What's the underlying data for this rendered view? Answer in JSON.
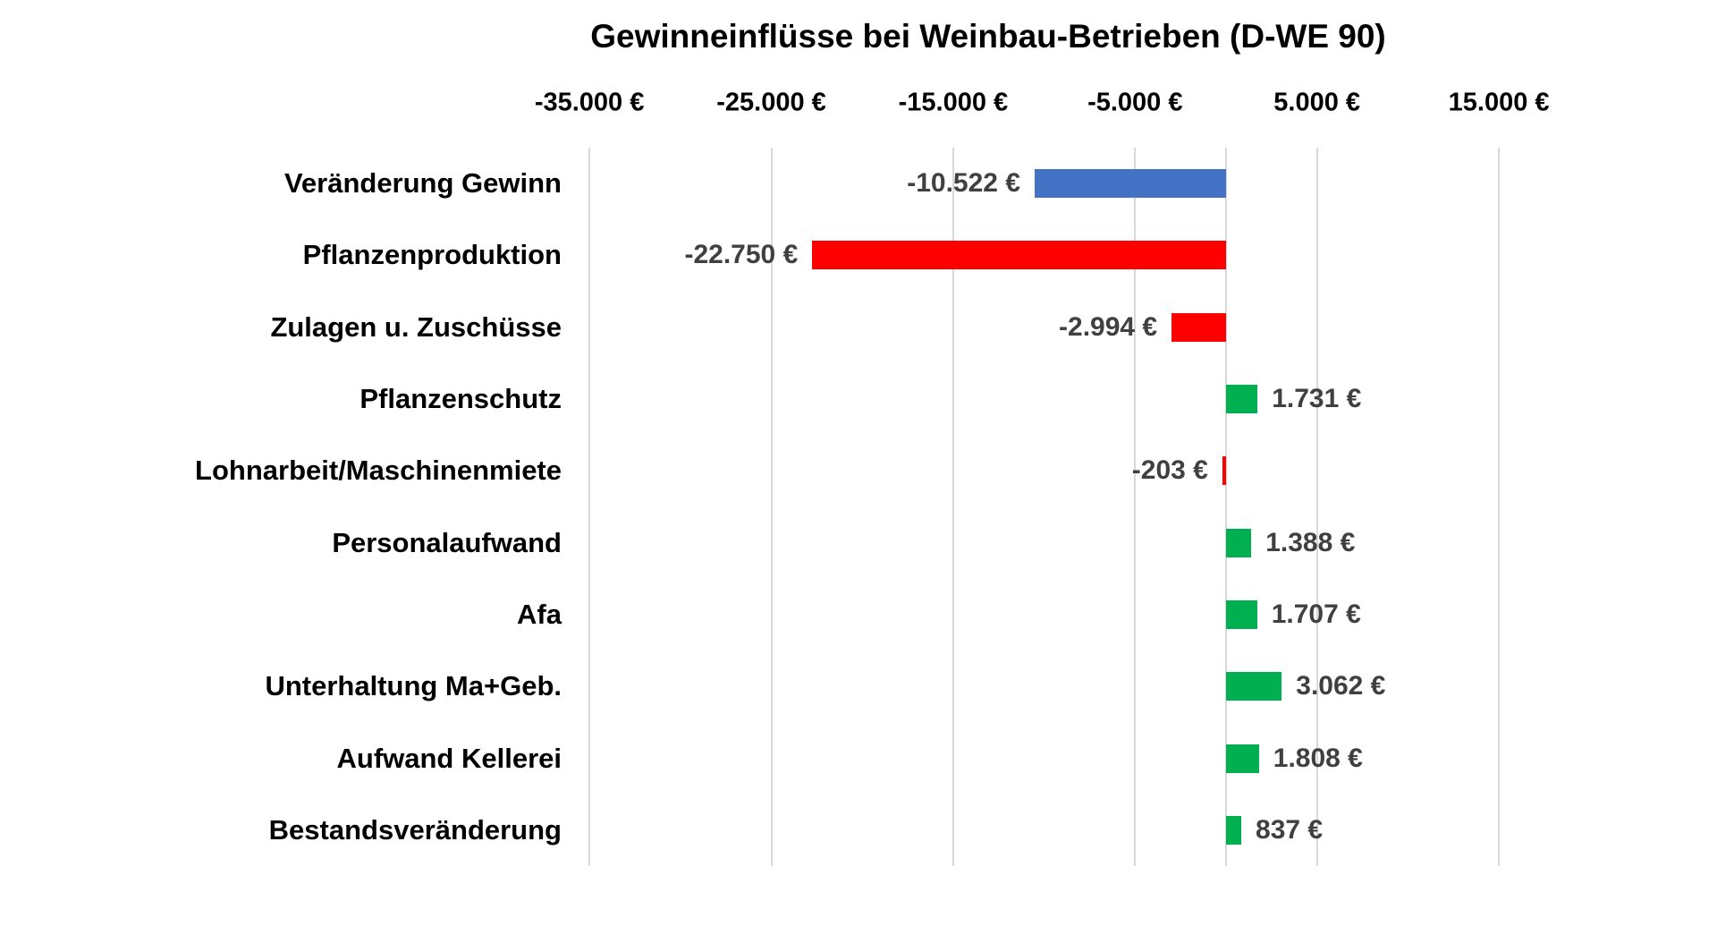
{
  "title": "Gewinneinflüsse bei Weinbau-Betrieben (D-WE 90)",
  "chart_data": {
    "type": "bar",
    "orientation": "horizontal",
    "title": "Gewinneinflüsse bei Weinbau-Betrieben (D-WE 90)",
    "categories": [
      "Veränderung Gewinn",
      "Pflanzenproduktion",
      "Zulagen u. Zuschüsse",
      "Pflanzenschutz",
      "Lohnarbeit/Maschinenmiete",
      "Personalaufwand",
      "Afa",
      "Unterhaltung Ma+Geb.",
      "Aufwand Kellerei",
      "Bestandsveränderung"
    ],
    "values": [
      -10522,
      -22750,
      -2994,
      1731,
      -203,
      1388,
      1707,
      3062,
      1808,
      837
    ],
    "value_labels": [
      "-10.522 €",
      "-22.750 €",
      "-2.994 €",
      "1.731 €",
      "-203 €",
      "1.388 €",
      "1.707 €",
      "3.062 €",
      "1.808 €",
      "837 €"
    ],
    "bar_colors": [
      "#4472C4",
      "#FF0000",
      "#FF0000",
      "#00B050",
      "#FF0000",
      "#00B050",
      "#00B050",
      "#00B050",
      "#00B050",
      "#00B050"
    ],
    "x_axis": {
      "unit": "€",
      "tick_values": [
        -35000,
        -25000,
        -15000,
        -5000,
        5000,
        15000
      ],
      "tick_labels": [
        "-35.000 €",
        "-25.000 €",
        "-15.000 €",
        "-5.000 €",
        "5.000 €",
        "15.000 €"
      ],
      "min": -39000,
      "max": 25000
    },
    "grid": true,
    "legend": false,
    "colors": {
      "gridline": "#D9D9D9",
      "axis_line": "#D9D9D9",
      "value_label": "#404040",
      "category_text": "#000000",
      "background": "#FFFFFF",
      "negative_bar": "#FF0000",
      "positive_bar": "#00B050",
      "total_bar": "#4472C4"
    }
  }
}
